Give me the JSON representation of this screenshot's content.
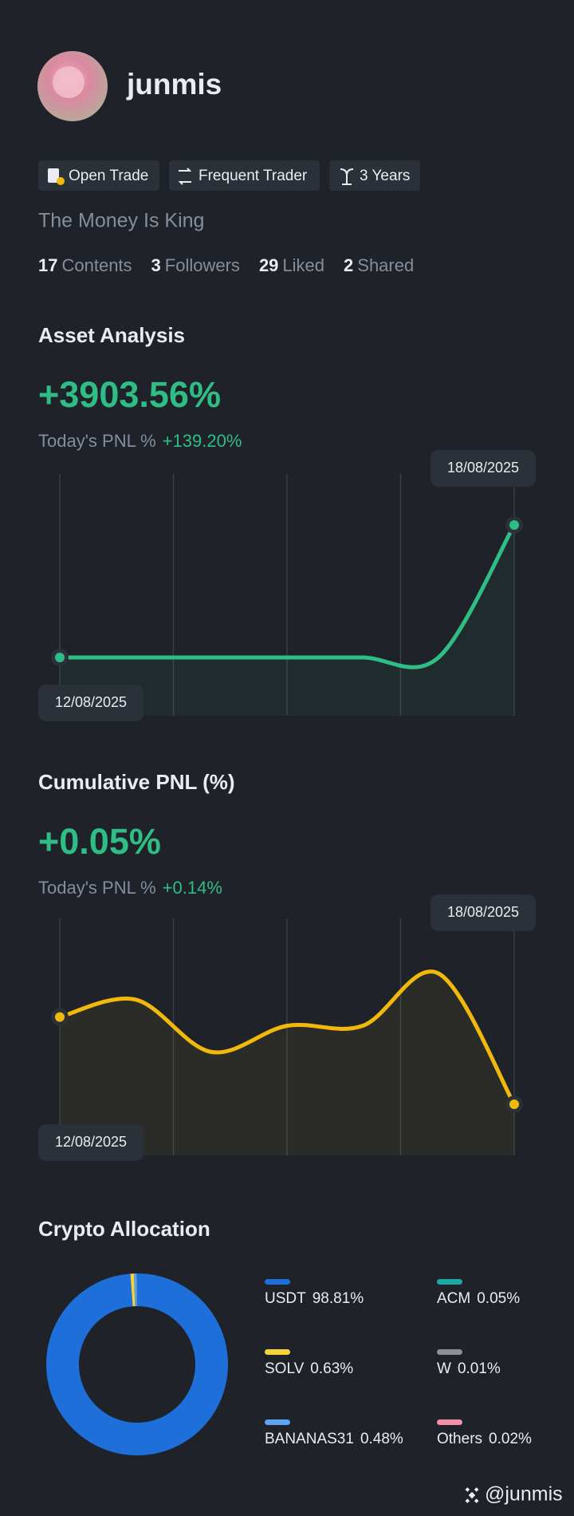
{
  "profile": {
    "name": "junmis",
    "badges": [
      "Open Trade",
      "Frequent Trader",
      "3 Years"
    ],
    "bio": "The Money Is King",
    "stats": [
      {
        "value": 17,
        "label": "Contents"
      },
      {
        "value": 3,
        "label": "Followers"
      },
      {
        "value": 29,
        "label": "Liked"
      },
      {
        "value": 2,
        "label": "Shared"
      }
    ]
  },
  "chart_data": [
    {
      "type": "line",
      "title": "Asset Analysis",
      "headline": "+3903.56%",
      "subtitle": "Today's PNL %",
      "today_value": "+139.20%",
      "categories": [
        "12/08/2025",
        null,
        null,
        null,
        null,
        null,
        "18/08/2025"
      ],
      "series": [
        {
          "color": "#2ebd85",
          "values": [
            0,
            0,
            0,
            0,
            0,
            0,
            3903.56
          ]
        }
      ]
    },
    {
      "type": "line",
      "title": "Cumulative PNL (%)",
      "headline": "+0.05%",
      "subtitle": "Today's PNL %",
      "today_value": "+0.14%",
      "categories": [
        "12/08/2025",
        null,
        null,
        null,
        null,
        null,
        "18/08/2025"
      ],
      "series": [
        {
          "color": "#f0b90b",
          "values": [
            0.1,
            0.11,
            0.08,
            0.095,
            0.095,
            0.125,
            0.05
          ]
        }
      ]
    },
    {
      "type": "donut",
      "title": "Crypto Allocation",
      "categories": [
        "USDT",
        "SOLV",
        "BANANAS31",
        "ACM",
        "W",
        "Others"
      ],
      "values": [
        98.81,
        0.63,
        0.48,
        0.05,
        0.01,
        0.02
      ],
      "value_labels": [
        "98.81%",
        "0.63%",
        "0.48%",
        "0.05%",
        "0.01%",
        "0.02%"
      ],
      "colors": [
        "#1e6fd9",
        "#f5d43a",
        "#5ba3f0",
        "#1fa9a5",
        "#8a8f98",
        "#f08fa8"
      ]
    }
  ],
  "footer": {
    "handle": "@junmis"
  }
}
